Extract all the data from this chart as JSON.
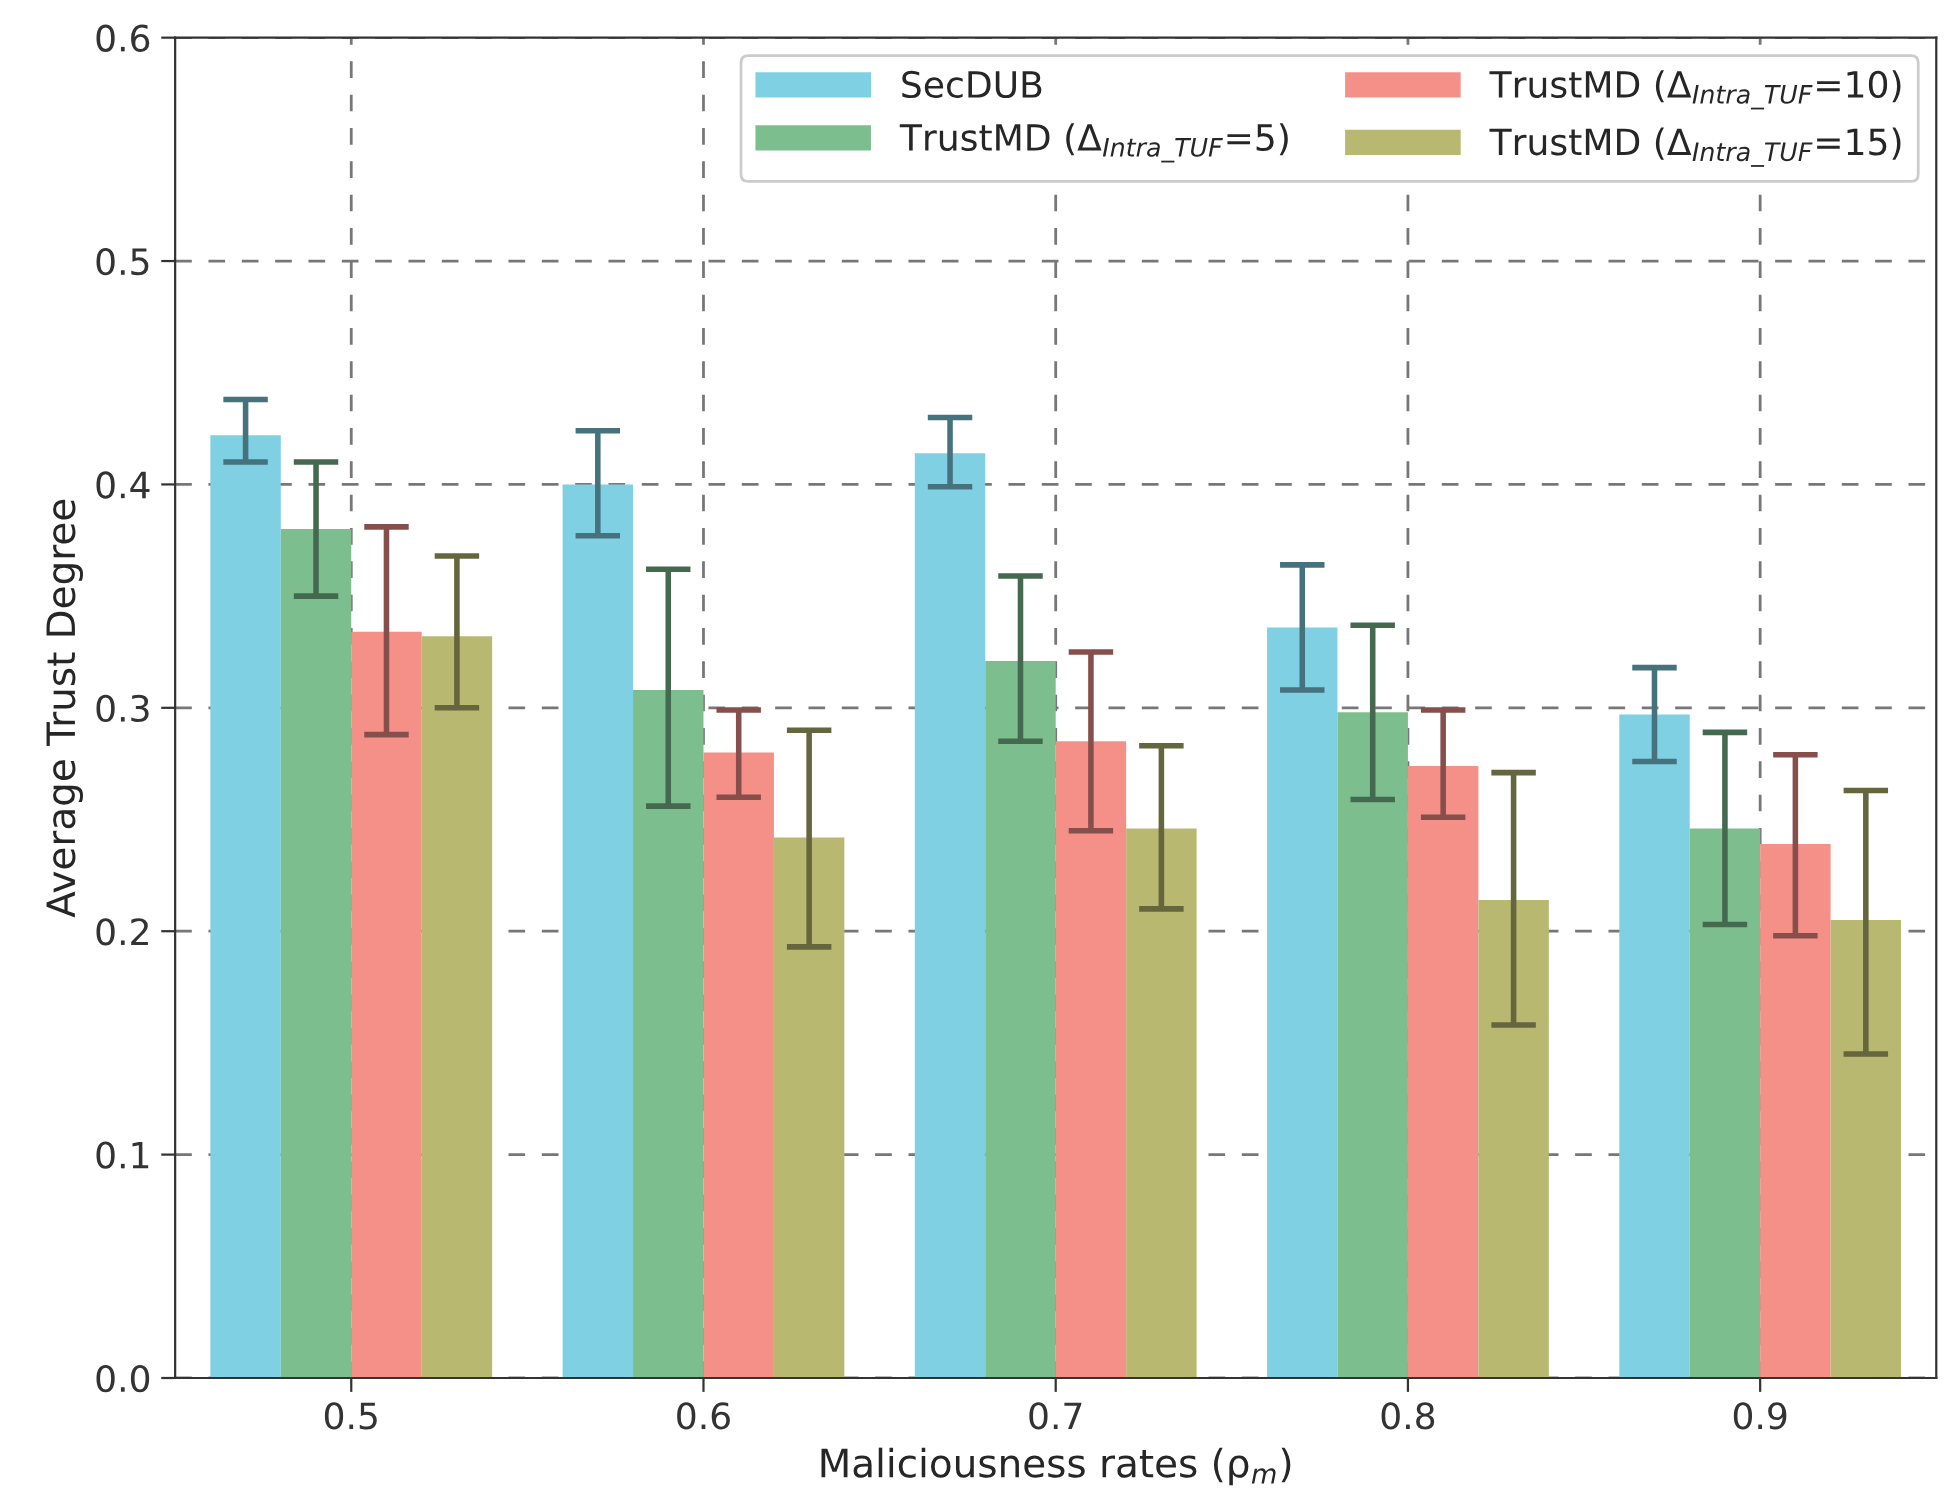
{
  "chart_data": {
    "type": "bar",
    "xlabel": "Maliciousness rates (ρ$_{m}$)",
    "ylabel": "Average Trust Degree",
    "categories": [
      "0.5",
      "0.6",
      "0.7",
      "0.8",
      "0.9"
    ],
    "ylim": [
      0,
      0.6
    ],
    "yticks": [
      {
        "value": 0,
        "label": "0.0"
      },
      0.1,
      0.2,
      0.3,
      0.4,
      0.5,
      0.6
    ],
    "grid": true,
    "legend": "top right",
    "series": [
      {
        "name": "SecDUB",
        "color": "#7fd0e3",
        "values": [
          0.422,
          0.4,
          0.414,
          0.336,
          0.297
        ],
        "errors": [
          [
            0.41,
            0.438
          ],
          [
            0.377,
            0.424
          ],
          [
            0.399,
            0.43
          ],
          [
            0.308,
            0.364
          ],
          [
            0.276,
            0.318
          ]
        ]
      },
      {
        "name": "TrustMD (Δ$_{Intra_TUF}$=5)",
        "color": "#7dbe8e",
        "values": [
          0.38,
          0.308,
          0.321,
          0.298,
          0.246
        ],
        "errors": [
          [
            0.35,
            0.41
          ],
          [
            0.256,
            0.362
          ],
          [
            0.285,
            0.359
          ],
          [
            0.259,
            0.337
          ],
          [
            0.203,
            0.289
          ]
        ]
      },
      {
        "name": "TrustMD (Δ$_{Intra_TUF}$=10)",
        "color": "#f59088",
        "values": [
          0.334,
          0.28,
          0.285,
          0.274,
          0.239
        ],
        "errors": [
          [
            0.288,
            0.381
          ],
          [
            0.26,
            0.299
          ],
          [
            0.245,
            0.325
          ],
          [
            0.251,
            0.299
          ],
          [
            0.198,
            0.279
          ]
        ]
      },
      {
        "name": "TrustMD (Δ$_{Intra_TUF}$=15)",
        "color": "#b8b870",
        "values": [
          0.332,
          0.242,
          0.246,
          0.214,
          0.205
        ],
        "errors": [
          [
            0.3,
            0.368
          ],
          [
            0.193,
            0.29
          ],
          [
            0.21,
            0.283
          ],
          [
            0.158,
            0.271
          ],
          [
            0.145,
            0.263
          ]
        ]
      }
    ]
  }
}
